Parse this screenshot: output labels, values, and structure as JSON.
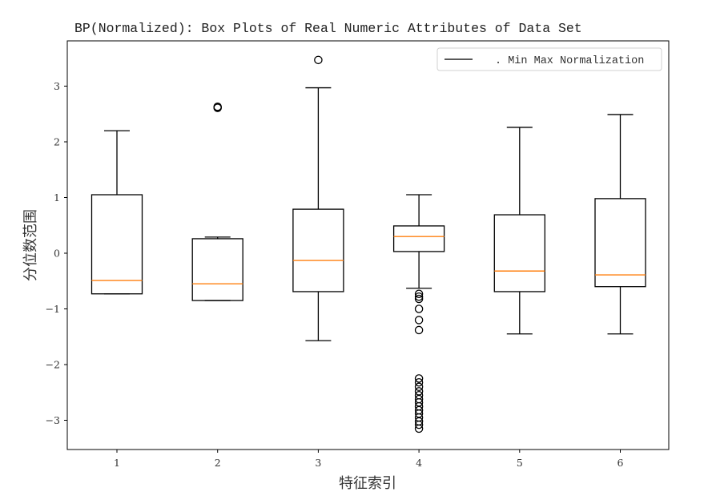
{
  "chart_data": {
    "type": "box",
    "title": "BP(Normalized): Box Plots of Real Numeric Attributes of Data Set",
    "xlabel": "特征索引",
    "ylabel": "分位数范围",
    "categories": [
      "1",
      "2",
      "3",
      "4",
      "5",
      "6"
    ],
    "ylim": [
      -3.5,
      3.8
    ],
    "yticks": [
      -3,
      -2,
      -1,
      0,
      1,
      2,
      3
    ],
    "grid": false,
    "legend": {
      "position": "upper right",
      "entries": [
        ". Min Max Normalization"
      ]
    },
    "colors": {
      "box": "#000000",
      "median": "#ff7f0e",
      "outlier_marker": "#000000"
    },
    "boxes": [
      {
        "label": "1",
        "whisker_low": -0.73,
        "q1": -0.73,
        "median": -0.49,
        "q3": 1.05,
        "whisker_high": 2.2,
        "outliers": []
      },
      {
        "label": "2",
        "whisker_low": -0.85,
        "q1": -0.85,
        "median": -0.55,
        "q3": 0.26,
        "whisker_high": 0.29,
        "outliers": [
          2.61,
          2.62,
          2.63
        ]
      },
      {
        "label": "3",
        "whisker_low": -1.57,
        "q1": -0.69,
        "median": -0.13,
        "q3": 0.79,
        "whisker_high": 2.97,
        "outliers": [
          3.47
        ]
      },
      {
        "label": "4",
        "whisker_low": -0.63,
        "q1": 0.03,
        "median": 0.3,
        "q3": 0.49,
        "whisker_high": 1.05,
        "outliers": [
          -0.73,
          -0.78,
          -0.82,
          -1.0,
          -1.2,
          -1.38,
          -2.25,
          -2.32,
          -2.4,
          -2.48,
          -2.55,
          -2.62,
          -2.68,
          -2.75,
          -2.82,
          -2.88,
          -2.95,
          -3.02,
          -3.08,
          -3.15
        ]
      },
      {
        "label": "5",
        "whisker_low": -1.45,
        "q1": -0.69,
        "median": -0.32,
        "q3": 0.69,
        "whisker_high": 2.26,
        "outliers": []
      },
      {
        "label": "6",
        "whisker_low": -1.45,
        "q1": -0.6,
        "median": -0.39,
        "q3": 0.98,
        "whisker_high": 2.49,
        "outliers": []
      }
    ]
  }
}
